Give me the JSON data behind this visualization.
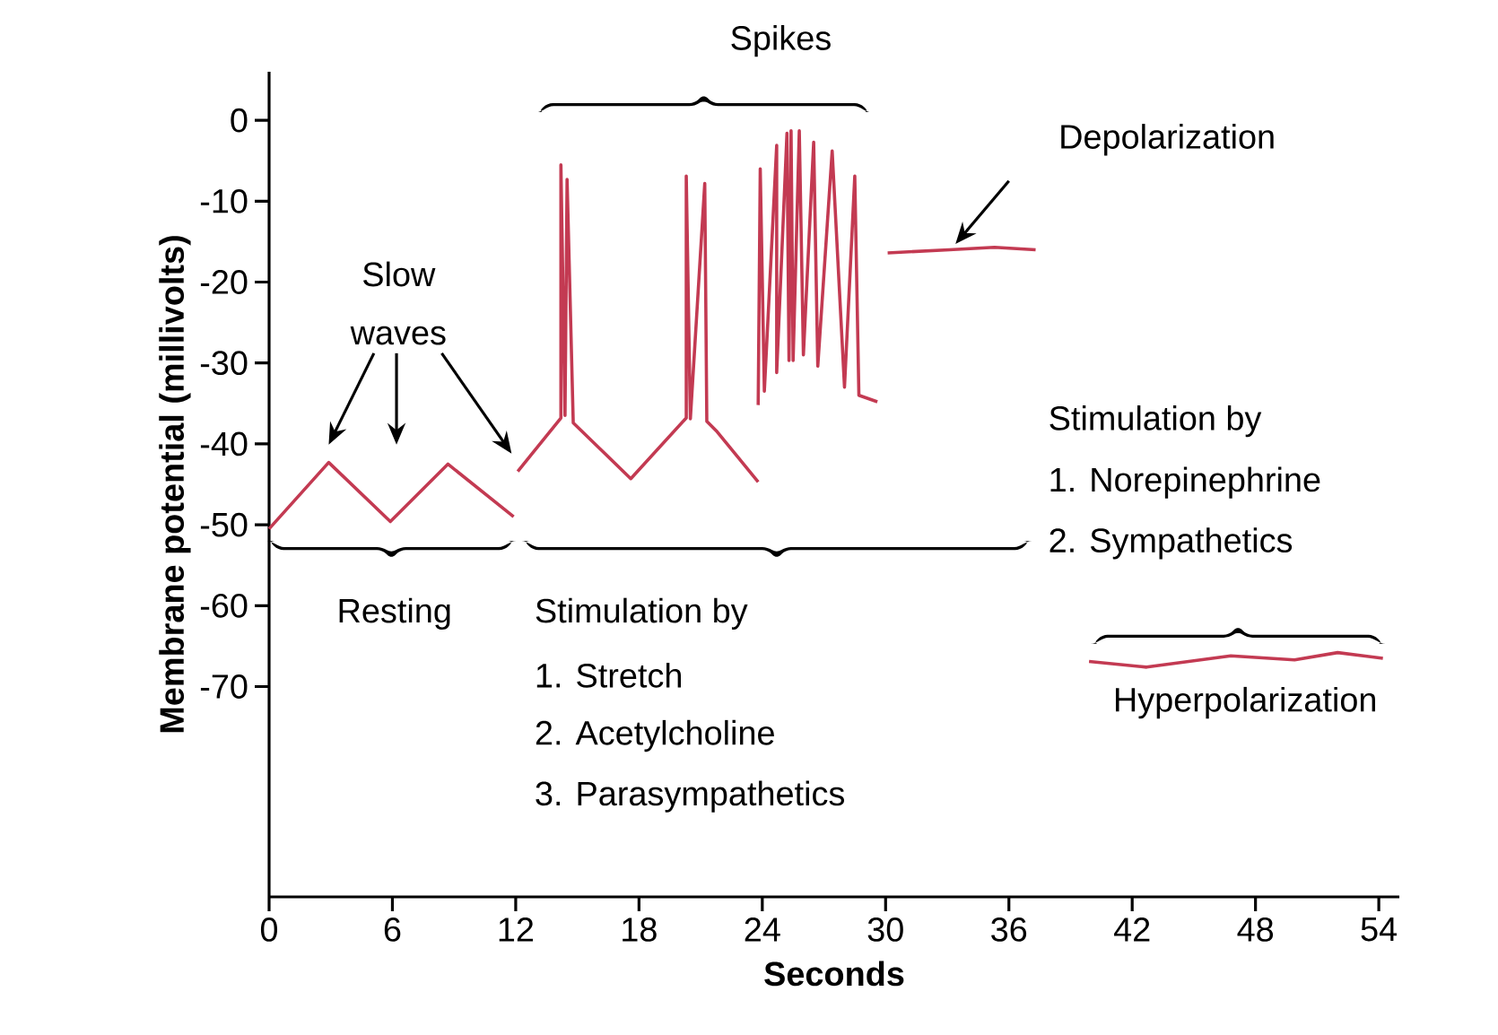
{
  "chart_data": {
    "type": "line",
    "xlabel": "Seconds",
    "ylabel": "Membrane potential (millivolts)",
    "xlim": [
      0,
      55
    ],
    "ylim": [
      -96,
      6
    ],
    "xticks": [
      0,
      6,
      12,
      18,
      24,
      30,
      36,
      42,
      48,
      54
    ],
    "yticks": [
      0,
      -10,
      -20,
      -30,
      -40,
      -50,
      -60,
      -70
    ],
    "marker": "none",
    "line_style": "solid",
    "grid": false,
    "annotations": [
      "Spikes",
      "Slow",
      "waves",
      "Depolarization",
      "Resting",
      "Stimulation by",
      "1. Stretch",
      "2. Acetylcholine",
      "3. Parasympathetics",
      "Stimulation by",
      "1. Norepinephrine",
      "2. Sympathetics",
      "Hyperpolarization"
    ],
    "series": [
      {
        "color": "#c33a52",
        "x": [
          0,
          2.9,
          5.9,
          8.7,
          11.9
        ],
        "values": [
          -50.5,
          -42.3,
          -49.6,
          -42.5,
          -49
        ]
      },
      {
        "color": "#c33a52",
        "x": [
          12.1,
          14.2,
          14.2,
          14.4,
          14.5,
          14.8,
          14.8,
          17.6,
          20.3,
          20.3,
          20.5,
          21.2,
          21.3,
          21.8,
          23.8
        ],
        "values": [
          -43.4,
          -36.8,
          -5.5,
          -36.5,
          -7.3,
          -37.4,
          -37.4,
          -44.3,
          -36.8,
          -6.9,
          -36.9,
          -7.8,
          -37.2,
          -38.5,
          -44.7
        ]
      },
      {
        "color": "#c33a52",
        "x": [
          23.8,
          23.9,
          24.1,
          24.7,
          24.7,
          25.2,
          25.3,
          25.4,
          25.5,
          25.8,
          26.0,
          26.5,
          26.7,
          27.4,
          28.0,
          28.5,
          28.7,
          29.6
        ],
        "values": [
          -35.2,
          -6.0,
          -33.5,
          -3.1,
          -31.2,
          -1.6,
          -29.7,
          -1.3,
          -29.7,
          -1.3,
          -29.0,
          -2.7,
          -30.4,
          -3.8,
          -33.0,
          -6.9,
          -34.0,
          -34.8
        ]
      },
      {
        "color": "#c33a52",
        "x": [
          30.1,
          33.1,
          35.3,
          37.3
        ],
        "values": [
          -16.4,
          -16.0,
          -15.7,
          -16.0
        ]
      },
      {
        "color": "#c33a52",
        "x": [
          39.9,
          42.7,
          46.8,
          49.9,
          52.0,
          54.2
        ],
        "values": [
          -66.9,
          -67.6,
          -66.2,
          -66.7,
          -65.8,
          -66.5
        ]
      }
    ]
  }
}
